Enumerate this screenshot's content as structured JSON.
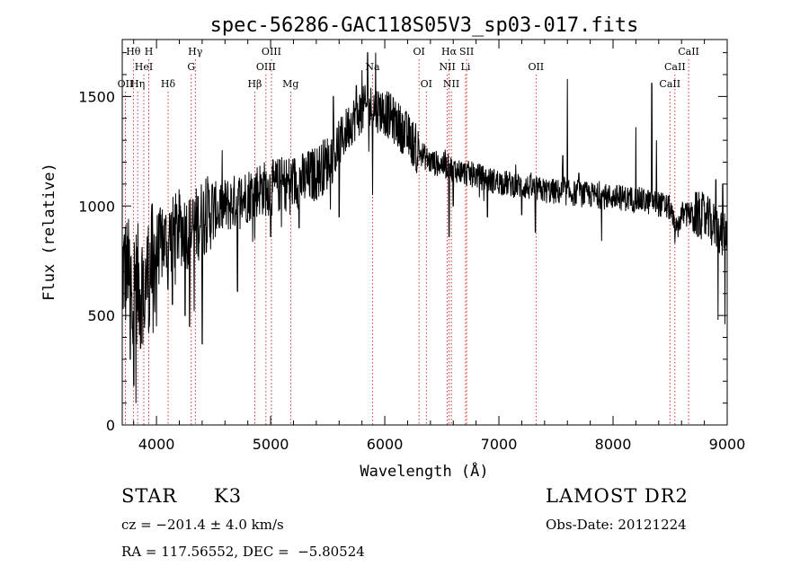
{
  "chart_data": {
    "type": "line",
    "title": "spec-56286-GAC118S05V3_sp03-017.fits",
    "xlabel": "Wavelength (Å)",
    "ylabel": "Flux (relative)",
    "xlim": [
      3700,
      9000
    ],
    "ylim": [
      0,
      1760
    ],
    "x_ticks": [
      4000,
      5000,
      6000,
      7000,
      8000,
      9000
    ],
    "x_tick_labels": [
      "4000",
      "5000",
      "6000",
      "7000",
      "8000",
      "9000"
    ],
    "y_ticks": [
      0,
      500,
      1000,
      1500
    ],
    "y_tick_labels": [
      "0",
      "500",
      "1000",
      "1500"
    ],
    "grid": false,
    "line_color": "#000000",
    "marker_color": "#cc0000",
    "continuum": [
      [
        3700,
        720
      ],
      [
        3800,
        640
      ],
      [
        3900,
        650
      ],
      [
        4000,
        800
      ],
      [
        4100,
        850
      ],
      [
        4200,
        900
      ],
      [
        4300,
        880
      ],
      [
        4400,
        950
      ],
      [
        4500,
        980
      ],
      [
        4600,
        1000
      ],
      [
        4700,
        1020
      ],
      [
        4800,
        1050
      ],
      [
        4900,
        1080
      ],
      [
        5000,
        1080
      ],
      [
        5100,
        1100
      ],
      [
        5200,
        1110
      ],
      [
        5300,
        1120
      ],
      [
        5400,
        1150
      ],
      [
        5500,
        1200
      ],
      [
        5600,
        1280
      ],
      [
        5700,
        1380
      ],
      [
        5800,
        1440
      ],
      [
        5900,
        1450
      ],
      [
        6000,
        1430
      ],
      [
        6100,
        1380
      ],
      [
        6200,
        1320
      ],
      [
        6300,
        1250
      ],
      [
        6400,
        1200
      ],
      [
        6500,
        1190
      ],
      [
        6600,
        1170
      ],
      [
        6700,
        1150
      ],
      [
        6800,
        1140
      ],
      [
        6900,
        1120
      ],
      [
        7000,
        1110
      ],
      [
        7200,
        1090
      ],
      [
        7400,
        1070
      ],
      [
        7600,
        1060
      ],
      [
        7800,
        1050
      ],
      [
        8000,
        1040
      ],
      [
        8200,
        1030
      ],
      [
        8400,
        1010
      ],
      [
        8500,
        990
      ],
      [
        8550,
        880
      ],
      [
        8600,
        960
      ],
      [
        8700,
        960
      ],
      [
        8800,
        950
      ],
      [
        8900,
        900
      ],
      [
        9000,
        860
      ]
    ],
    "features": [
      [
        3750,
        580
      ],
      [
        3770,
        300
      ],
      [
        3800,
        180
      ],
      [
        3820,
        100
      ],
      [
        3860,
        350
      ],
      [
        3890,
        500
      ],
      [
        3935,
        450
      ],
      [
        3970,
        420
      ],
      [
        4000,
        450
      ],
      [
        4100,
        620
      ],
      [
        4140,
        550
      ],
      [
        4250,
        500
      ],
      [
        4290,
        450
      ],
      [
        4330,
        520
      ],
      [
        4400,
        370
      ],
      [
        4550,
        900
      ],
      [
        4710,
        610
      ],
      [
        4861,
        850
      ],
      [
        5000,
        860
      ],
      [
        5170,
        960
      ],
      [
        5250,
        900
      ],
      [
        5550,
        1500
      ],
      [
        5600,
        950
      ],
      [
        5750,
        1550
      ],
      [
        5800,
        1620
      ],
      [
        5850,
        1700
      ],
      [
        5893,
        1050
      ],
      [
        5920,
        1700
      ],
      [
        6280,
        1150
      ],
      [
        6563,
        860
      ],
      [
        6600,
        1000
      ],
      [
        6900,
        950
      ],
      [
        7200,
        960
      ],
      [
        7320,
        880
      ],
      [
        7560,
        1230
      ],
      [
        7600,
        1580
      ],
      [
        7700,
        1150
      ],
      [
        7900,
        840
      ],
      [
        8200,
        1360
      ],
      [
        8340,
        1560
      ],
      [
        8380,
        1300
      ],
      [
        8542,
        830
      ],
      [
        8662,
        950
      ],
      [
        8900,
        1120
      ],
      [
        8920,
        480
      ],
      [
        8960,
        1100
      ],
      [
        8980,
        460
      ]
    ],
    "lines": [
      {
        "label": "Hθ",
        "x": 3797,
        "row": 0
      },
      {
        "label": "H",
        "x": 3933,
        "row": 0
      },
      {
        "label": "Hγ",
        "x": 4340,
        "row": 0
      },
      {
        "label": "OIII",
        "x": 5007,
        "row": 0
      },
      {
        "label": "OI",
        "x": 6300,
        "row": 0
      },
      {
        "label": "Hα",
        "x": 6563,
        "row": 0
      },
      {
        "label": "SII",
        "x": 6717,
        "row": 0
      },
      {
        "label": "CaII",
        "x": 8662,
        "row": 0
      },
      {
        "label": "HeI",
        "x": 3889,
        "row": 1
      },
      {
        "label": "G",
        "x": 4305,
        "row": 1
      },
      {
        "label": "OIII",
        "x": 4959,
        "row": 1
      },
      {
        "label": "Na",
        "x": 5893,
        "row": 1
      },
      {
        "label": "NII",
        "x": 6548,
        "row": 1
      },
      {
        "label": "Li",
        "x": 6708,
        "row": 1
      },
      {
        "label": "OII",
        "x": 7325,
        "row": 1
      },
      {
        "label": "CaII",
        "x": 8542,
        "row": 1
      },
      {
        "label": "OII",
        "x": 3727,
        "row": 2
      },
      {
        "label": "Hη",
        "x": 3835,
        "row": 2
      },
      {
        "label": "Hδ",
        "x": 4102,
        "row": 2
      },
      {
        "label": "Hβ",
        "x": 4861,
        "row": 2
      },
      {
        "label": "Mg",
        "x": 5175,
        "row": 2
      },
      {
        "label": "OI",
        "x": 6364,
        "row": 2
      },
      {
        "label": "NII",
        "x": 6583,
        "row": 2
      },
      {
        "label": "CaII",
        "x": 8498,
        "row": 2
      }
    ]
  },
  "info": {
    "object_class": "STAR",
    "subclass": "K3",
    "survey": "LAMOST DR2",
    "redshift": "cz = −201.4 ± 4.0 km/s",
    "obs_date": "Obs-Date: 20121224",
    "coords": "RA = 117.56552, DEC =  −5.80524"
  }
}
